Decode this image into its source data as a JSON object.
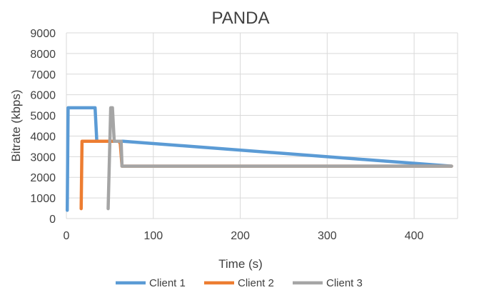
{
  "chart_data": {
    "type": "line",
    "title": "PANDA",
    "xlabel": "Time (s)",
    "ylabel": "Bitrate (kbps)",
    "xlim": [
      0,
      450
    ],
    "ylim": [
      0,
      9000
    ],
    "xticks": [
      "0",
      "100",
      "200",
      "300",
      "400"
    ],
    "yticks": [
      "0",
      "1000",
      "2000",
      "3000",
      "4000",
      "5000",
      "6000",
      "7000",
      "8000",
      "9000"
    ],
    "grid": true,
    "legend": "bottom",
    "series": [
      {
        "name": "Client 1",
        "color": "#5B9BD5",
        "x": [
          1,
          2,
          33,
          35,
          65,
          443
        ],
        "y": [
          400,
          5370,
          5370,
          3750,
          3750,
          2540
        ]
      },
      {
        "name": "Client 2",
        "color": "#ED7D31",
        "x": [
          17,
          18,
          60,
          62,
          64,
          443
        ],
        "y": [
          480,
          3750,
          3750,
          3650,
          2540,
          2540
        ]
      },
      {
        "name": "Client 3",
        "color": "#A5A5A5",
        "x": [
          48,
          51,
          53,
          55,
          58,
          60,
          62,
          63,
          64,
          443
        ],
        "y": [
          480,
          5370,
          5370,
          3750,
          3750,
          3750,
          3750,
          3750,
          2540,
          2540
        ]
      }
    ]
  }
}
